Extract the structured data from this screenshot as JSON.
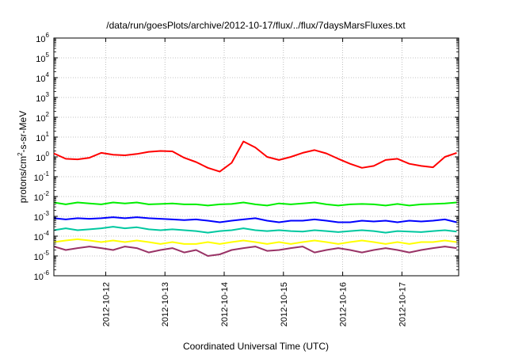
{
  "chart_data": {
    "type": "line",
    "title": "/data/run/goesPlots/archive/2012-10-17/flux/../flux/7daysMarsFluxes.txt",
    "xlabel": "Coordinated Universal Time (UTC)",
    "ylabel": "protons/cm2-s-sr-MeV",
    "yscale": "log",
    "ylim_exponent": [
      -6,
      6
    ],
    "ytick_base": "10",
    "ytick_exponents": [
      "-6",
      "-5",
      "-4",
      "-3",
      "-2",
      "-1",
      "0",
      "1",
      "2",
      "3",
      "4",
      "5",
      "6"
    ],
    "xlim": [
      "2012-10-11 03:00",
      "2012-10-17 23:00"
    ],
    "xticks": [
      "2012-10-12",
      "2012-10-13",
      "2012-10-14",
      "2012-10-15",
      "2012-10-16",
      "2012-10-17"
    ],
    "grid": true,
    "legend": "none",
    "x_days": [
      0,
      0.2,
      0.4,
      0.6,
      0.8,
      1.0,
      1.2,
      1.4,
      1.6,
      1.8,
      2.0,
      2.2,
      2.4,
      2.6,
      2.8,
      3.0,
      3.2,
      3.4,
      3.6,
      3.8,
      4.0,
      4.2,
      4.4,
      4.6,
      4.8,
      5.0,
      5.2,
      5.4,
      5.6,
      5.8,
      6.0,
      6.2,
      6.4,
      6.6,
      6.8
    ],
    "series": [
      {
        "color": "#ff0000",
        "values": [
          1.5,
          0.8,
          0.75,
          0.9,
          1.6,
          1.3,
          1.2,
          1.4,
          1.8,
          2.0,
          1.9,
          0.9,
          0.55,
          0.28,
          0.18,
          0.5,
          6.0,
          3.0,
          1.0,
          0.7,
          1.0,
          1.6,
          2.2,
          1.5,
          0.8,
          0.45,
          0.28,
          0.35,
          0.7,
          0.8,
          0.45,
          0.35,
          0.3,
          1.0,
          1.6
        ]
      },
      {
        "color": "#00ee00",
        "values": [
          0.005,
          0.004,
          0.005,
          0.0045,
          0.004,
          0.005,
          0.0045,
          0.005,
          0.004,
          0.0042,
          0.0045,
          0.004,
          0.004,
          0.0035,
          0.004,
          0.0042,
          0.005,
          0.004,
          0.0035,
          0.0045,
          0.004,
          0.0045,
          0.005,
          0.004,
          0.0035,
          0.004,
          0.0042,
          0.004,
          0.0035,
          0.0042,
          0.0035,
          0.004,
          0.0042,
          0.0045,
          0.005
        ]
      },
      {
        "color": "#0000ff",
        "values": [
          0.0008,
          0.0007,
          0.0008,
          0.00075,
          0.0008,
          0.0009,
          0.0008,
          0.0009,
          0.0008,
          0.00075,
          0.0007,
          0.00065,
          0.0007,
          0.0006,
          0.0005,
          0.0006,
          0.0007,
          0.0008,
          0.0006,
          0.0005,
          0.0006,
          0.0006,
          0.0007,
          0.0006,
          0.0005,
          0.0005,
          0.0006,
          0.00055,
          0.0006,
          0.0005,
          0.0006,
          0.00055,
          0.0006,
          0.0007,
          0.0005
        ]
      },
      {
        "color": "#00c8a0",
        "values": [
          0.0002,
          0.00025,
          0.0002,
          0.00022,
          0.00025,
          0.0003,
          0.00025,
          0.00028,
          0.00022,
          0.0002,
          0.00022,
          0.0002,
          0.00018,
          0.00015,
          0.00018,
          0.0002,
          0.00025,
          0.0002,
          0.00018,
          0.0002,
          0.00018,
          0.00017,
          0.0002,
          0.00018,
          0.00016,
          0.00018,
          0.0002,
          0.00018,
          0.00015,
          0.00018,
          0.00017,
          0.00016,
          0.00018,
          0.0002,
          0.00017
        ]
      },
      {
        "color": "#ffff00",
        "values": [
          5e-05,
          6e-05,
          7e-05,
          6e-05,
          5e-05,
          6e-05,
          5e-05,
          6e-05,
          5e-05,
          4e-05,
          5e-05,
          4e-05,
          4e-05,
          5e-05,
          4e-05,
          5e-05,
          6e-05,
          5e-05,
          4e-05,
          5e-05,
          4e-05,
          5e-05,
          6e-05,
          5e-05,
          4e-05,
          5e-05,
          6e-05,
          5e-05,
          4e-05,
          5e-05,
          4e-05,
          5e-05,
          5e-05,
          6e-05,
          5e-05
        ]
      },
      {
        "color": "#993366",
        "values": [
          3e-05,
          2e-05,
          2.5e-05,
          3e-05,
          2.5e-05,
          2e-05,
          3e-05,
          2.5e-05,
          1.5e-05,
          2e-05,
          2.5e-05,
          1.5e-05,
          2e-05,
          1e-05,
          1.2e-05,
          2e-05,
          2.5e-05,
          3e-05,
          1.8e-05,
          2e-05,
          2.5e-05,
          3e-05,
          1.5e-05,
          2e-05,
          2.5e-05,
          2e-05,
          1.5e-05,
          2e-05,
          2.5e-05,
          2e-05,
          1.5e-05,
          2e-05,
          2.5e-05,
          3e-05,
          2.5e-05
        ]
      }
    ]
  }
}
